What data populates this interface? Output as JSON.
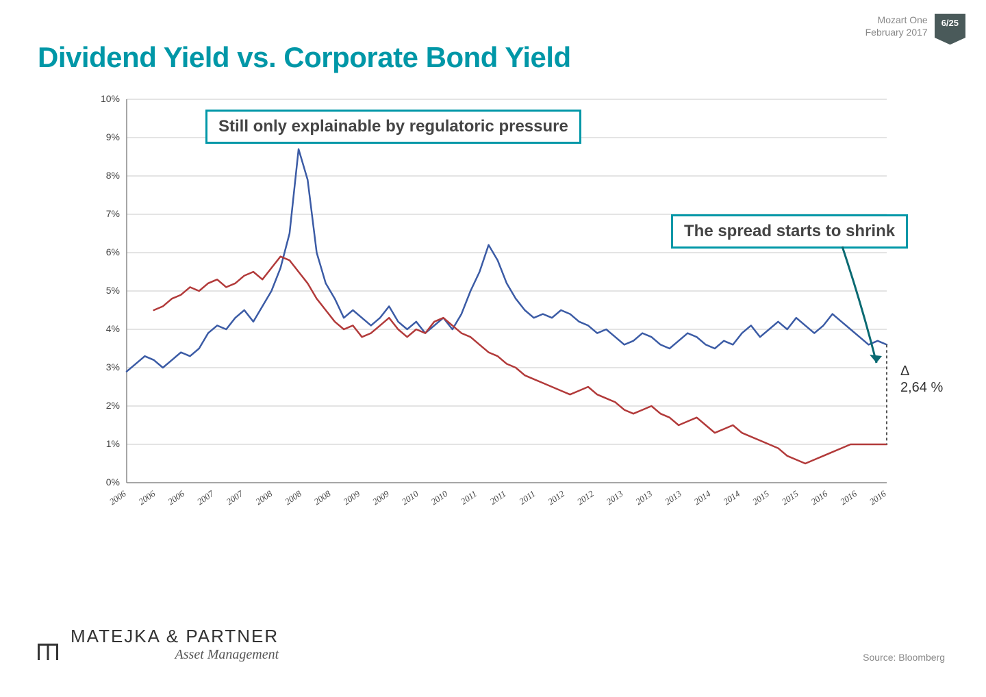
{
  "header": {
    "doc_name": "Mozart One",
    "date": "February 2017",
    "page": "6/25"
  },
  "title": "Dividend Yield vs. Corporate Bond Yield",
  "annotations": {
    "box1": {
      "text": "Still only explainable by regulatoric pressure",
      "fontsize": 24
    },
    "box2": {
      "text": "The spread starts to shrink",
      "fontsize": 24
    },
    "delta": {
      "symbol": "Δ",
      "value": "2,64 %",
      "fontsize": 20
    }
  },
  "chart": {
    "type": "line",
    "background_color": "#ffffff",
    "axis_color": "#888888",
    "grid_color": "#c8c8c8",
    "y": {
      "min": 0,
      "max": 10,
      "step": 1,
      "suffix": "%",
      "label_fontsize": 14,
      "label_color": "#444"
    },
    "x": {
      "labels": [
        "2006",
        "2006",
        "2006",
        "2007",
        "2007",
        "2008",
        "2008",
        "2008",
        "2009",
        "2009",
        "2010",
        "2010",
        "2011",
        "2011",
        "2011",
        "2012",
        "2012",
        "2013",
        "2013",
        "2013",
        "2014",
        "2014",
        "2015",
        "2015",
        "2016",
        "2016",
        "2016"
      ],
      "label_fontsize": 13,
      "label_color": "#444",
      "label_rotation": -35
    },
    "series": [
      {
        "name": "dividend_yield",
        "color": "#3b5ba5",
        "line_width": 2.5,
        "data": [
          2.9,
          3.1,
          3.3,
          3.2,
          3.0,
          3.2,
          3.4,
          3.3,
          3.5,
          3.9,
          4.1,
          4.0,
          4.3,
          4.5,
          4.2,
          4.6,
          5.0,
          5.6,
          6.5,
          8.7,
          7.9,
          6.0,
          5.2,
          4.8,
          4.3,
          4.5,
          4.3,
          4.1,
          4.3,
          4.6,
          4.2,
          4.0,
          4.2,
          3.9,
          4.1,
          4.3,
          4.0,
          4.4,
          5.0,
          5.5,
          6.2,
          5.8,
          5.2,
          4.8,
          4.5,
          4.3,
          4.4,
          4.3,
          4.5,
          4.4,
          4.2,
          4.1,
          3.9,
          4.0,
          3.8,
          3.6,
          3.7,
          3.9,
          3.8,
          3.6,
          3.5,
          3.7,
          3.9,
          3.8,
          3.6,
          3.5,
          3.7,
          3.6,
          3.9,
          4.1,
          3.8,
          4.0,
          4.2,
          4.0,
          4.3,
          4.1,
          3.9,
          4.1,
          4.4,
          4.2,
          4.0,
          3.8,
          3.6,
          3.7,
          3.6
        ]
      },
      {
        "name": "corporate_bond_yield",
        "color": "#b23a3a",
        "line_width": 2.5,
        "data": [
          null,
          null,
          null,
          4.5,
          4.6,
          4.8,
          4.9,
          5.1,
          5.0,
          5.2,
          5.3,
          5.1,
          5.2,
          5.4,
          5.5,
          5.3,
          5.6,
          5.9,
          5.8,
          5.5,
          5.2,
          4.8,
          4.5,
          4.2,
          4.0,
          4.1,
          3.8,
          3.9,
          4.1,
          4.3,
          4.0,
          3.8,
          4.0,
          3.9,
          4.2,
          4.3,
          4.1,
          3.9,
          3.8,
          3.6,
          3.4,
          3.3,
          3.1,
          3.0,
          2.8,
          2.7,
          2.6,
          2.5,
          2.4,
          2.3,
          2.4,
          2.5,
          2.3,
          2.2,
          2.1,
          1.9,
          1.8,
          1.9,
          2.0,
          1.8,
          1.7,
          1.5,
          1.6,
          1.7,
          1.5,
          1.3,
          1.4,
          1.5,
          1.3,
          1.2,
          1.1,
          1.0,
          0.9,
          0.7,
          0.6,
          0.5,
          0.6,
          0.7,
          0.8,
          0.9,
          1.0,
          1.0,
          1.0,
          1.0,
          1.0
        ]
      }
    ],
    "end_bracket": {
      "top_value": 3.6,
      "bottom_value": 1.0,
      "color": "#555555",
      "dash": "4,4"
    }
  },
  "footer": {
    "company": "MATEJKA & PARTNER",
    "tagline": "Asset Management",
    "source": "Source: Bloomberg"
  },
  "colors": {
    "accent": "#0097a7",
    "text_muted": "#888888"
  }
}
